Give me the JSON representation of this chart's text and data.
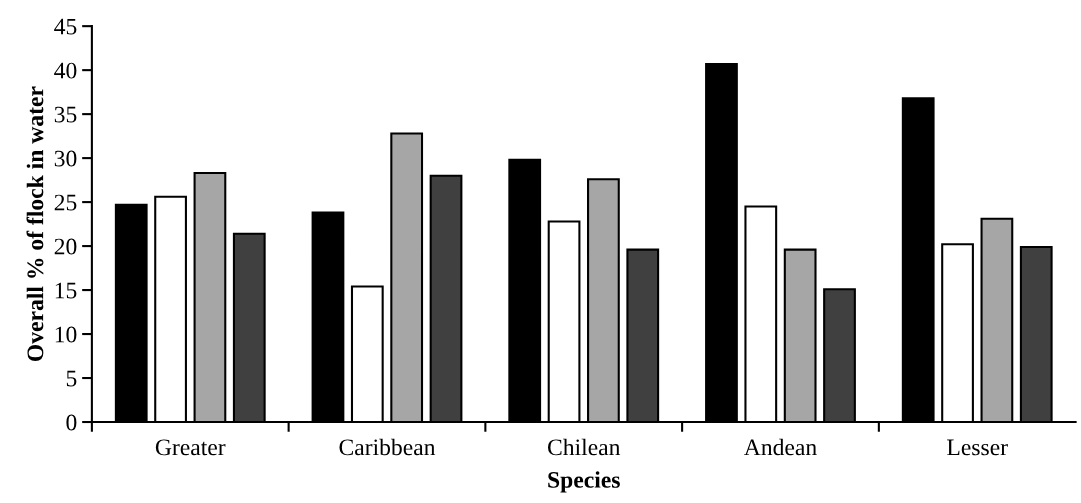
{
  "chart_data": {
    "type": "bar",
    "xlabel": "Species",
    "ylabel": "Overall % of flock in water",
    "categories": [
      "Greater",
      "Caribbean",
      "Chilean",
      "Andean",
      "Lesser"
    ],
    "series": [
      {
        "color": "#000000",
        "values": [
          24.7,
          23.8,
          29.8,
          40.7,
          36.8
        ]
      },
      {
        "color": "#ffffff",
        "values": [
          25.6,
          15.4,
          22.8,
          24.5,
          20.2
        ]
      },
      {
        "color": "#a6a6a6",
        "values": [
          28.3,
          32.8,
          27.6,
          19.6,
          23.1
        ]
      },
      {
        "color": "#404040",
        "values": [
          21.4,
          28.0,
          19.6,
          15.1,
          19.9
        ]
      }
    ],
    "ylim": [
      0,
      45
    ],
    "yticks": [
      0,
      5,
      10,
      15,
      20,
      25,
      30,
      35,
      40,
      45
    ],
    "grid": false
  }
}
